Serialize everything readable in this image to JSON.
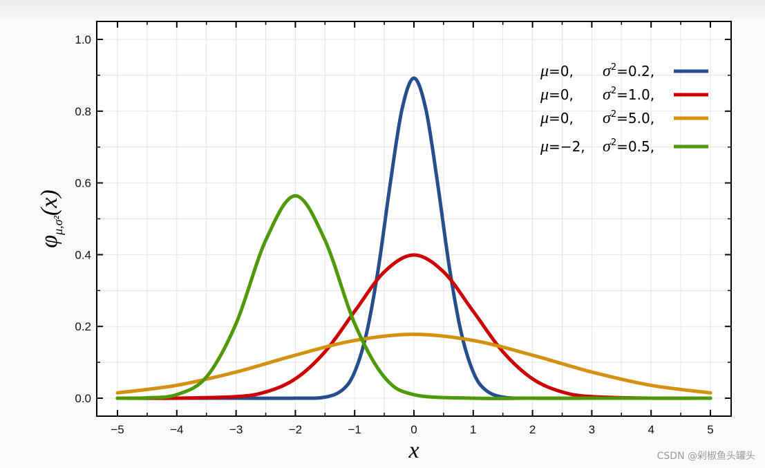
{
  "chart_data": {
    "type": "line",
    "title": "",
    "xlabel": "x",
    "ylabel": "φμ,σ²(x)",
    "ylabel_main": "φ",
    "ylabel_sub": "μ,σ²",
    "ylabel_arg": "(x)",
    "xlim": [
      -5.35,
      5.35
    ],
    "ylim": [
      -0.05,
      1.05
    ],
    "xticks": [
      -5,
      -4,
      -3,
      -2,
      -1,
      0,
      1,
      2,
      3,
      4,
      5
    ],
    "xtick_labels": [
      "−5",
      "−4",
      "−3",
      "−2",
      "−1",
      "0",
      "1",
      "2",
      "3",
      "4",
      "5"
    ],
    "yticks": [
      0.0,
      0.2,
      0.4,
      0.6,
      0.8,
      1.0
    ],
    "ytick_labels": [
      "0.0",
      "0.2",
      "0.4",
      "0.6",
      "0.8",
      "1.0"
    ],
    "grid": true,
    "legend_position": "top-right",
    "series": [
      {
        "mu_label": "0,",
        "sigma2_label": "0.2,",
        "mu": 0,
        "sigma2": 0.2,
        "color": "#254e8c",
        "x": [
          -5,
          -4,
          -3,
          -2,
          -1.5,
          -1.2,
          -1,
          -0.8,
          -0.6,
          -0.4,
          -0.2,
          0,
          0.2,
          0.4,
          0.6,
          0.8,
          1,
          1.2,
          1.5,
          2,
          3,
          4,
          5
        ],
        "y": [
          0,
          0,
          0,
          0,
          0.003,
          0.024,
          0.073,
          0.181,
          0.362,
          0.598,
          0.806,
          0.892,
          0.806,
          0.598,
          0.362,
          0.181,
          0.073,
          0.024,
          0.003,
          0,
          0,
          0,
          0
        ]
      },
      {
        "mu_label": "0,",
        "sigma2_label": "1.0,",
        "mu": 0,
        "sigma2": 1.0,
        "color": "#cc0000",
        "x": [
          -5,
          -4,
          -3,
          -2.5,
          -2,
          -1.5,
          -1,
          -0.5,
          0,
          0.5,
          1,
          1.5,
          2,
          2.5,
          3,
          4,
          5
        ],
        "y": [
          0,
          0.0001,
          0.0044,
          0.0175,
          0.054,
          0.1295,
          0.242,
          0.352,
          0.399,
          0.352,
          0.242,
          0.1295,
          0.054,
          0.0175,
          0.0044,
          0.0001,
          0
        ]
      },
      {
        "mu_label": "0,",
        "sigma2_label": "5.0,",
        "mu": 0,
        "sigma2": 5.0,
        "color": "#d4910f",
        "x": [
          -5,
          -4,
          -3,
          -2,
          -1,
          0,
          1,
          2,
          3,
          4,
          5
        ],
        "y": [
          0.015,
          0.036,
          0.073,
          0.12,
          0.161,
          0.178,
          0.161,
          0.12,
          0.073,
          0.036,
          0.015
        ]
      },
      {
        "mu_label": "−2,",
        "sigma2_label": "0.5,",
        "mu": -2,
        "sigma2": 0.5,
        "color": "#4e9a06",
        "x": [
          -5,
          -4.5,
          -4,
          -3.5,
          -3,
          -2.5,
          -2,
          -1.5,
          -1,
          -0.5,
          0,
          1,
          2,
          3,
          4,
          5
        ],
        "y": [
          0,
          0.001,
          0.01,
          0.059,
          0.208,
          0.44,
          0.564,
          0.44,
          0.208,
          0.059,
          0.01,
          0,
          0,
          0,
          0,
          0
        ]
      }
    ]
  },
  "legend": {
    "mu_symbol": "μ",
    "sigma_symbol": "σ",
    "equals": "=",
    "squared": "2"
  },
  "watermark": "CSDN @剁椒鱼头罐头"
}
